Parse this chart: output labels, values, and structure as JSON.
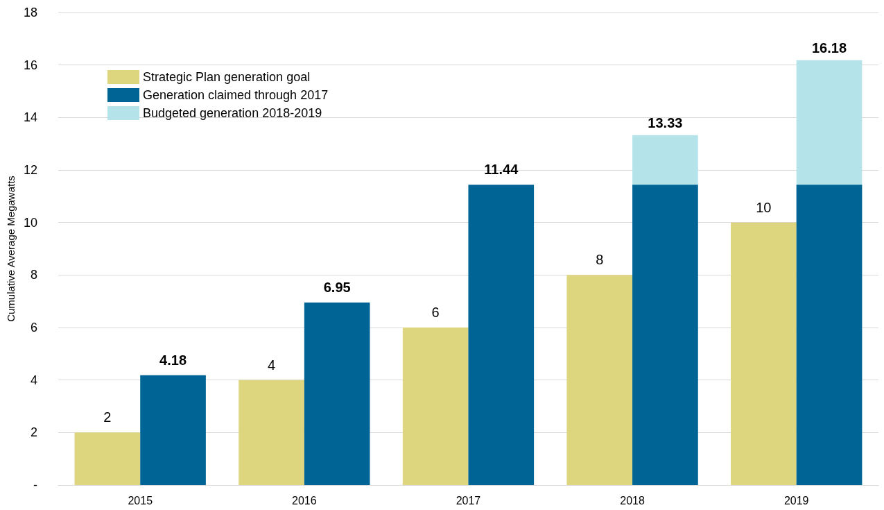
{
  "chart_data": {
    "type": "bar",
    "ylabel": "Cumulative Average Megawatts",
    "categories": [
      "2015",
      "2016",
      "2017",
      "2018",
      "2019"
    ],
    "series": [
      {
        "name": "Strategic Plan generation goal",
        "color": "#ddd67f",
        "values": [
          2,
          4,
          6,
          8,
          10
        ],
        "value_labels": [
          "2",
          "4",
          "6",
          "8",
          "10"
        ]
      },
      {
        "name": "Generation claimed through 2017",
        "color": "#006595",
        "values": [
          4.18,
          6.95,
          11.44,
          11.44,
          11.44
        ],
        "value_labels": [
          "4.18",
          "6.95",
          "11.44",
          null,
          null
        ]
      },
      {
        "name": "Budgeted generation 2018-2019",
        "color": "#b5e3ea",
        "values": [
          null,
          null,
          null,
          13.33,
          16.18
        ],
        "value_labels": [
          null,
          null,
          null,
          "13.33",
          "16.18"
        ]
      }
    ],
    "ylim": [
      0,
      18
    ],
    "yticks": [
      {
        "value": 0,
        "label": "-"
      },
      2,
      4,
      6,
      8,
      10,
      12,
      14,
      16,
      18
    ],
    "grid": "y",
    "legend": "top left"
  }
}
